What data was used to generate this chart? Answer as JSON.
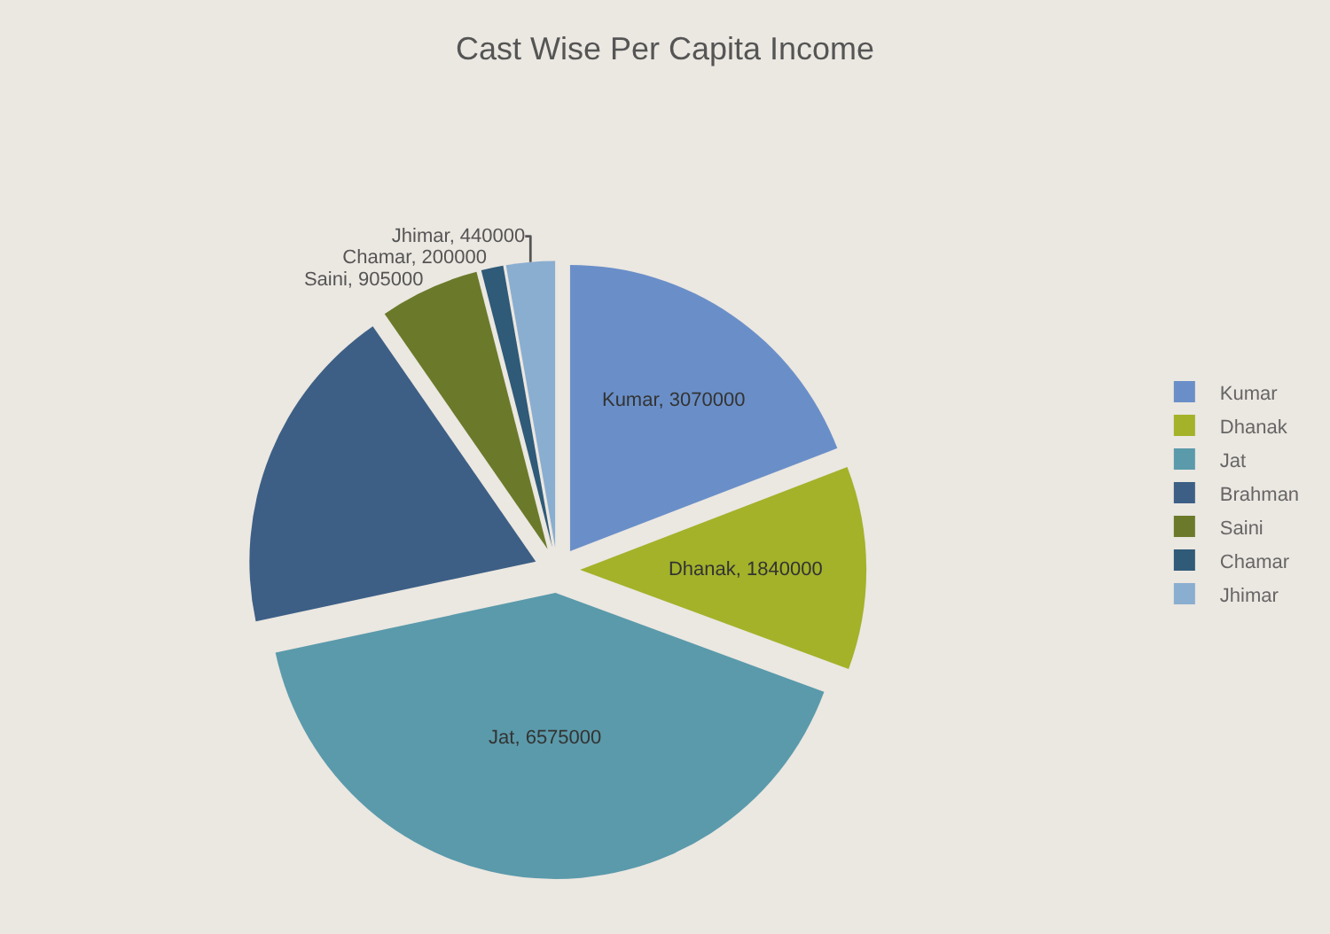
{
  "chart_data": {
    "type": "pie",
    "title": "Cast Wise Per Capita Income",
    "categories": [
      "Kumar",
      "Dhanak",
      "Jat",
      "Brahman",
      "Saini",
      "Chamar",
      "Jhimar"
    ],
    "values": [
      3070000,
      1840000,
      6575000,
      3000000,
      905000,
      200000,
      440000
    ],
    "value_labels": [
      "Kumar, 3070000",
      "Dhanak, 1840000",
      "Jat, 6575000",
      null,
      "Saini, 905000",
      "Chamar, 200000",
      "Jhimar, 440000"
    ],
    "colors": [
      "#6a8fc8",
      "#a3b229",
      "#5a9aab",
      "#3d5f85",
      "#6b7a2a",
      "#2f5a78",
      "#8aaed0"
    ],
    "legend": "right"
  }
}
